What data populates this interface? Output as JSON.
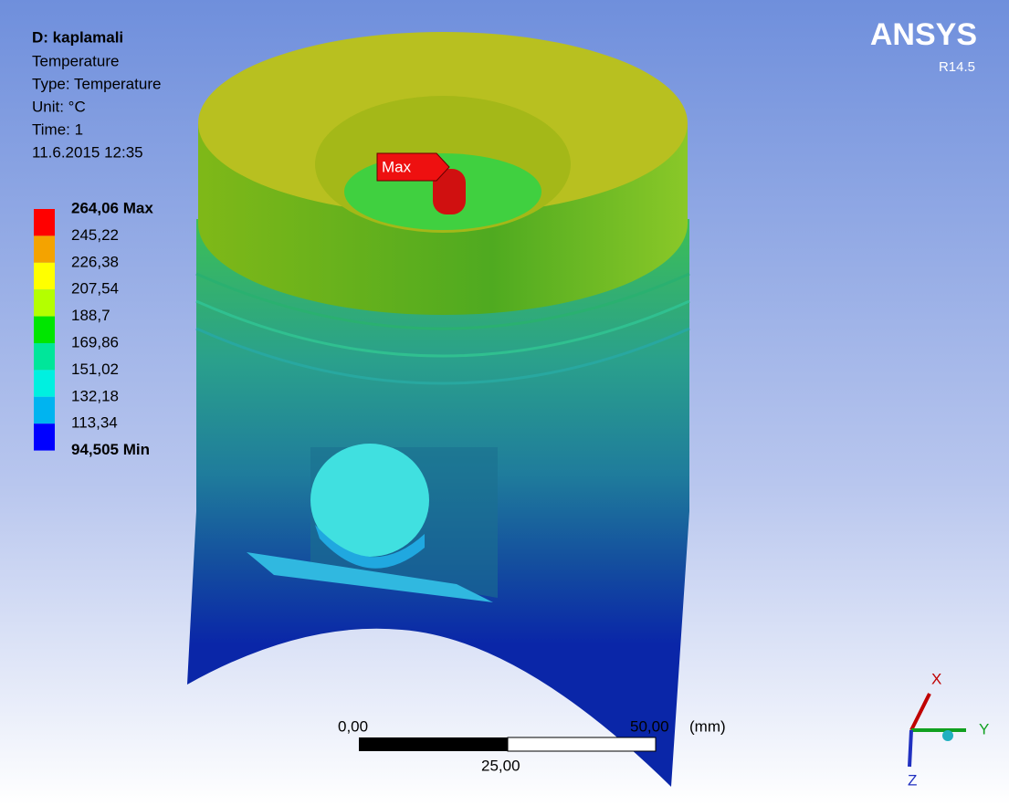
{
  "header": {
    "title": "D: kaplamali",
    "lines": [
      "Temperature",
      "Type: Temperature",
      "Unit: °C",
      "Time: 1",
      "11.6.2015 12:35"
    ]
  },
  "brand": {
    "name": "ANSYS",
    "version": "R14.5"
  },
  "legend": {
    "labels": [
      "264,06 Max",
      "245,22",
      "226,38",
      "207,54",
      "188,7",
      "169,86",
      "151,02",
      "132,18",
      "113,34",
      "94,505 Min"
    ],
    "colors": [
      "#ff0000",
      "#f4a300",
      "#ffff00",
      "#b4ff00",
      "#00e600",
      "#00e69a",
      "#00f0e0",
      "#00b4f0",
      "#0000ff"
    ]
  },
  "probe": {
    "label": "Max"
  },
  "scale_bar": {
    "start": "0,00",
    "end": "50,00",
    "unit": "(mm)",
    "middle": "25,00"
  },
  "triad": {
    "x": "X",
    "y": "Y",
    "z": "Z"
  }
}
